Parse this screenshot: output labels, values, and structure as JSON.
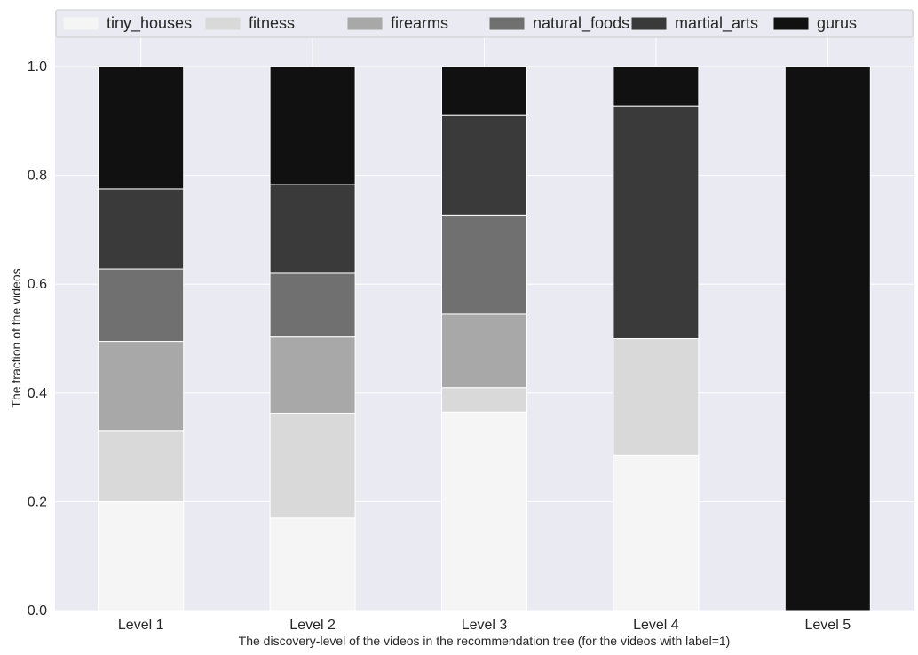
{
  "chart_data": {
    "type": "bar",
    "stacked": true,
    "xlabel": "The discovery-level of the videos in the recommendation tree (for the videos with label=1)",
    "ylabel": "The fraction of the videos",
    "ylim": [
      0,
      1.0
    ],
    "yticks": [
      "0.0",
      "0.2",
      "0.4",
      "0.6",
      "0.8",
      "1.0"
    ],
    "grid": true,
    "legend_placement": "top",
    "categories": [
      "Level 1",
      "Level 2",
      "Level 3",
      "Level 4",
      "Level 5"
    ],
    "series": [
      {
        "name": "tiny_houses",
        "color": "#f5f5f5",
        "values": [
          0.2,
          0.17,
          0.365,
          0.285,
          0.0
        ]
      },
      {
        "name": "fitness",
        "color": "#d9d9d9",
        "values": [
          0.13,
          0.193,
          0.045,
          0.215,
          0.0
        ]
      },
      {
        "name": "firearms",
        "color": "#a8a8a8",
        "values": [
          0.165,
          0.14,
          0.135,
          0.0,
          0.0
        ]
      },
      {
        "name": "natural_foods",
        "color": "#707070",
        "values": [
          0.133,
          0.117,
          0.182,
          0.0,
          0.0
        ]
      },
      {
        "name": "martial_arts",
        "color": "#3a3a3a",
        "values": [
          0.147,
          0.163,
          0.183,
          0.428,
          0.0
        ]
      },
      {
        "name": "gurus",
        "color": "#111111",
        "values": [
          0.225,
          0.217,
          0.09,
          0.072,
          1.0
        ]
      }
    ]
  }
}
